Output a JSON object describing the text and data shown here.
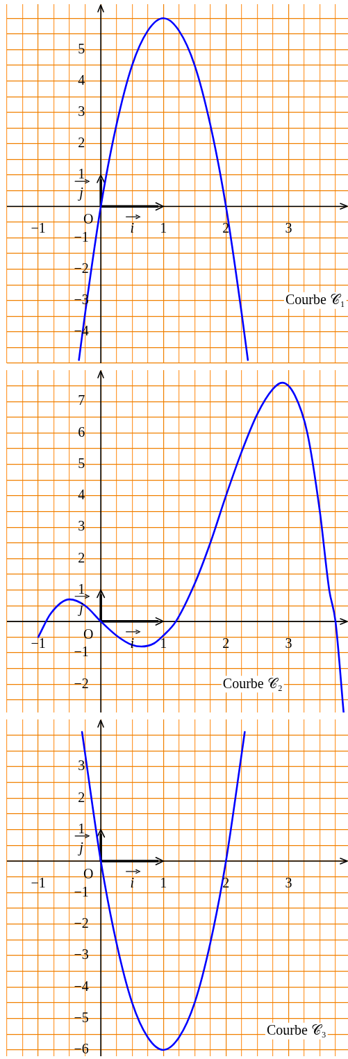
{
  "chart_data": [
    {
      "type": "line",
      "xlim": [
        -1.5,
        3.95
      ],
      "ylim": [
        -5,
        6.45
      ],
      "grid": true,
      "legend": false,
      "marker": "none",
      "line_style": "solid",
      "xticks": [
        {
          "value": -1.5,
          "label": null
        },
        {
          "value": -1.25,
          "label": null
        },
        {
          "value": -1,
          "label": "−1"
        },
        {
          "value": -0.75,
          "label": null
        },
        {
          "value": -0.5,
          "label": null
        },
        {
          "value": -0.25,
          "label": null
        },
        {
          "value": 0,
          "label": null
        },
        {
          "value": 0.25,
          "label": null
        },
        {
          "value": 0.5,
          "label": null
        },
        {
          "value": 0.75,
          "label": null
        },
        1,
        {
          "value": 1.25,
          "label": null
        },
        {
          "value": 1.5,
          "label": null
        },
        {
          "value": 1.75,
          "label": null
        },
        2,
        {
          "value": 2.25,
          "label": null
        },
        {
          "value": 2.5,
          "label": null
        },
        {
          "value": 2.75,
          "label": null
        },
        3,
        {
          "value": 3.25,
          "label": null
        },
        {
          "value": 3.5,
          "label": null
        },
        {
          "value": 3.75,
          "label": null
        }
      ],
      "yticks": [
        {
          "value": -5,
          "label": null
        },
        {
          "value": -4.5,
          "label": null
        },
        {
          "value": -4,
          "label": "−4"
        },
        {
          "value": -3.5,
          "label": null
        },
        {
          "value": -3,
          "label": "−3"
        },
        {
          "value": -2.5,
          "label": null
        },
        {
          "value": -2,
          "label": "−2"
        },
        {
          "value": -1.5,
          "label": null
        },
        {
          "value": -1,
          "label": "−1"
        },
        {
          "value": -0.5,
          "label": null
        },
        {
          "value": 0,
          "label": null
        },
        {
          "value": 0.5,
          "label": null
        },
        1,
        {
          "value": 1.5,
          "label": null
        },
        2,
        {
          "value": 2.5,
          "label": null
        },
        3,
        {
          "value": 3.5,
          "label": null
        },
        4,
        {
          "value": 4.5,
          "label": null
        },
        5,
        {
          "value": 5.5,
          "label": null
        },
        {
          "value": 6,
          "label": null
        }
      ],
      "annotations": [
        "O",
        "i",
        "j"
      ],
      "series": [
        {
          "name": "Courbe 𝒞₁",
          "color": "#0000ff",
          "x": [
            -0.35,
            -0.25,
            0,
            0.25,
            0.5,
            0.75,
            1,
            1.25,
            1.5,
            1.75,
            2,
            2.25,
            2.35
          ],
          "values": [
            -4.9,
            -3.4,
            0,
            2.6,
            4.5,
            5.6,
            6,
            5.6,
            4.5,
            2.6,
            0,
            -3.4,
            -4.9
          ]
        }
      ]
    },
    {
      "type": "line",
      "xlim": [
        -1.5,
        3.95
      ],
      "ylim": [
        -2.9,
        8
      ],
      "grid": true,
      "legend": false,
      "marker": "none",
      "line_style": "solid",
      "xticks": [
        {
          "value": -1.5,
          "label": null
        },
        {
          "value": -1.25,
          "label": null
        },
        {
          "value": -1,
          "label": "−1"
        },
        {
          "value": -0.75,
          "label": null
        },
        {
          "value": -0.5,
          "label": null
        },
        {
          "value": -0.25,
          "label": null
        },
        {
          "value": 0,
          "label": null
        },
        {
          "value": 0.25,
          "label": null
        },
        {
          "value": 0.5,
          "label": null
        },
        {
          "value": 0.75,
          "label": null
        },
        1,
        {
          "value": 1.25,
          "label": null
        },
        {
          "value": 1.5,
          "label": null
        },
        {
          "value": 1.75,
          "label": null
        },
        2,
        {
          "value": 2.25,
          "label": null
        },
        {
          "value": 2.5,
          "label": null
        },
        {
          "value": 2.75,
          "label": null
        },
        3,
        {
          "value": 3.25,
          "label": null
        },
        {
          "value": 3.5,
          "label": null
        },
        {
          "value": 3.75,
          "label": null
        }
      ],
      "yticks": [
        {
          "value": -2.5,
          "label": null
        },
        {
          "value": -2,
          "label": "−2"
        },
        {
          "value": -1.5,
          "label": null
        },
        {
          "value": -1,
          "label": "−1"
        },
        {
          "value": -0.5,
          "label": null
        },
        {
          "value": 0,
          "label": null
        },
        {
          "value": 0.5,
          "label": null
        },
        1,
        {
          "value": 1.5,
          "label": null
        },
        2,
        {
          "value": 2.5,
          "label": null
        },
        3,
        {
          "value": 3.5,
          "label": null
        },
        4,
        {
          "value": 4.5,
          "label": null
        },
        5,
        {
          "value": 5.5,
          "label": null
        },
        6,
        {
          "value": 6.5,
          "label": null
        },
        7,
        {
          "value": 7.5,
          "label": null
        }
      ],
      "annotations": [
        "O",
        "i",
        "j"
      ],
      "series": [
        {
          "name": "Courbe 𝒞₂",
          "color": "#0000ff",
          "x": [
            -1,
            -0.8,
            -0.5,
            -0.25,
            0,
            0.25,
            0.5,
            0.65,
            0.85,
            1,
            1.2,
            1.5,
            1.75,
            2,
            2.25,
            2.5,
            2.75,
            2.9,
            3.1,
            3.3,
            3.5,
            3.65,
            3.75,
            3.88
          ],
          "values": [
            -0.5,
            0.25,
            0.7,
            0.5,
            0,
            -0.45,
            -0.75,
            -0.8,
            -0.7,
            -0.45,
            0,
            1.2,
            2.5,
            4,
            5.4,
            6.6,
            7.4,
            7.6,
            7.2,
            6,
            3.5,
            1,
            0,
            -2.9
          ]
        }
      ]
    },
    {
      "type": "line",
      "xlim": [
        -1.5,
        3.95
      ],
      "ylim": [
        -6.2,
        4.5
      ],
      "grid": true,
      "legend": false,
      "marker": "none",
      "line_style": "solid",
      "xticks": [
        {
          "value": -1.5,
          "label": null
        },
        {
          "value": -1.25,
          "label": null
        },
        {
          "value": -1,
          "label": "−1"
        },
        {
          "value": -0.75,
          "label": null
        },
        {
          "value": -0.5,
          "label": null
        },
        {
          "value": -0.25,
          "label": null
        },
        {
          "value": 0,
          "label": null
        },
        {
          "value": 0.25,
          "label": null
        },
        {
          "value": 0.5,
          "label": null
        },
        {
          "value": 0.75,
          "label": null
        },
        1,
        {
          "value": 1.25,
          "label": null
        },
        {
          "value": 1.5,
          "label": null
        },
        {
          "value": 1.75,
          "label": null
        },
        2,
        {
          "value": 2.25,
          "label": null
        },
        {
          "value": 2.5,
          "label": null
        },
        {
          "value": 2.75,
          "label": null
        },
        3,
        {
          "value": 3.25,
          "label": null
        },
        {
          "value": 3.5,
          "label": null
        },
        {
          "value": 3.75,
          "label": null
        }
      ],
      "yticks": [
        {
          "value": -6,
          "label": "−6"
        },
        {
          "value": -5.5,
          "label": null
        },
        {
          "value": -5,
          "label": "−5"
        },
        {
          "value": -4.5,
          "label": null
        },
        {
          "value": -4,
          "label": "−4"
        },
        {
          "value": -3.5,
          "label": null
        },
        {
          "value": -3,
          "label": "−3"
        },
        {
          "value": -2.5,
          "label": null
        },
        {
          "value": -2,
          "label": "−2"
        },
        {
          "value": -1.5,
          "label": null
        },
        {
          "value": -1,
          "label": "−1"
        },
        {
          "value": -0.5,
          "label": null
        },
        {
          "value": 0,
          "label": null
        },
        {
          "value": 0.5,
          "label": null
        },
        1,
        {
          "value": 1.5,
          "label": null
        },
        2,
        {
          "value": 2.5,
          "label": null
        },
        3,
        {
          "value": 3.5,
          "label": null
        },
        {
          "value": 4,
          "label": null
        }
      ],
      "annotations": [
        "O",
        "i",
        "j"
      ],
      "series": [
        {
          "name": "Courbe 𝒞₃",
          "color": "#0000ff",
          "x": [
            -0.3,
            -0.25,
            0,
            0.25,
            0.5,
            0.75,
            1,
            1.25,
            1.5,
            1.75,
            2,
            2.25,
            2.3
          ],
          "values": [
            4.1,
            3.4,
            0,
            -2.6,
            -4.5,
            -5.6,
            -6,
            -5.6,
            -4.5,
            -2.6,
            0,
            3.4,
            4.1
          ]
        }
      ]
    }
  ]
}
